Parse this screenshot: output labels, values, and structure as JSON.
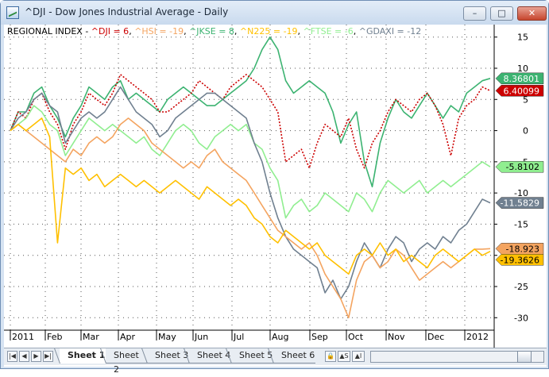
{
  "window": {
    "title": "^DJI - Dow Jones Industrial Average - Daily",
    "minimize_glyph": "–",
    "maximize_glyph": "□",
    "close_glyph": "✕",
    "icon": "chart-icon"
  },
  "legend": {
    "prefix": "REGIONAL INDEX - ",
    "items": [
      {
        "text": "^DJI = 6",
        "color": "#cc0000"
      },
      {
        "text": "^HSI = -19",
        "color": "#f4a460"
      },
      {
        "text": "^JKSE = 8",
        "color": "#3cb371"
      },
      {
        "text": "^N225 = -19",
        "color": "#ffc000"
      },
      {
        "text": "^FTSE = -6",
        "color": "#90ee90"
      },
      {
        "text": "^GDAXI = -12",
        "color": "#708090"
      }
    ],
    "separator": ", "
  },
  "chart_data": {
    "type": "line",
    "title": "REGIONAL INDEX",
    "x_labels": [
      "2011",
      "Feb",
      "Mar",
      "Apr",
      "May",
      "Jun",
      "Jul",
      "Aug",
      "Sep",
      "Oct",
      "Nov",
      "Dec",
      "2012"
    ],
    "ylim": [
      -32,
      17
    ],
    "y_ticks": [
      15,
      10,
      5,
      0,
      -5,
      -10,
      -15,
      -20,
      -25,
      -30
    ],
    "grid": true,
    "legend_position": "top-left",
    "series": [
      {
        "name": "^JKSE",
        "color": "#3cb371",
        "last_label": "8.36801",
        "values": [
          0,
          3,
          3,
          6,
          7,
          4,
          2,
          -1,
          2,
          4,
          7,
          6,
          5,
          7,
          8,
          5,
          6,
          5,
          4,
          3,
          5,
          6,
          7,
          6,
          5,
          4,
          4,
          5,
          6,
          7,
          8,
          10,
          13,
          15,
          13,
          8,
          6,
          7,
          8,
          7,
          6,
          3,
          -2,
          1,
          3,
          -5,
          -9,
          -2,
          2,
          5,
          3,
          2,
          4,
          6,
          4,
          2,
          4,
          3,
          6,
          7,
          8,
          8.36801
        ]
      },
      {
        "name": "^DJI",
        "color": "#cc0000",
        "last_label": "6.40099",
        "values": [
          0,
          3,
          2,
          5,
          6,
          3,
          1,
          -3,
          1,
          3,
          6,
          5,
          4,
          6,
          9,
          8,
          7,
          6,
          5,
          3,
          3,
          4,
          5,
          6,
          8,
          7,
          6,
          5,
          7,
          8,
          9,
          8,
          7,
          5,
          3,
          -5,
          -4,
          -3,
          -6,
          -2,
          1,
          0,
          -1,
          2,
          -3,
          -6,
          -2,
          0,
          3,
          5,
          4,
          3,
          5,
          6,
          4,
          1,
          -4,
          2,
          4,
          5,
          7,
          6.40099
        ]
      },
      {
        "name": "^FTSE",
        "color": "#90ee90",
        "last_label": "-5.8102",
        "values": [
          0,
          1,
          2,
          4,
          3,
          1,
          0,
          -4,
          -2,
          0,
          2,
          1,
          0,
          1,
          0,
          -1,
          -2,
          -1,
          -3,
          -4,
          -2,
          0,
          1,
          0,
          -2,
          -3,
          -1,
          0,
          1,
          0,
          1,
          -2,
          -3,
          -6,
          -8,
          -14,
          -12,
          -11,
          -13,
          -12,
          -10,
          -11,
          -12,
          -13,
          -10,
          -11,
          -13,
          -10,
          -8,
          -9,
          -10,
          -9,
          -8,
          -10,
          -9,
          -8,
          -9,
          -8,
          -7,
          -6,
          -5,
          -5.8102
        ]
      },
      {
        "name": "^GDAXI",
        "color": "#708090",
        "last_label": "-11.5829",
        "values": [
          0,
          2,
          3,
          5,
          6,
          4,
          3,
          -2,
          0,
          2,
          3,
          2,
          3,
          5,
          7,
          5,
          3,
          2,
          1,
          -1,
          0,
          2,
          3,
          4,
          5,
          6,
          6,
          5,
          4,
          3,
          2,
          -2,
          -5,
          -10,
          -14,
          -17,
          -19,
          -20,
          -21,
          -22,
          -26,
          -24,
          -27,
          -25,
          -21,
          -18,
          -20,
          -22,
          -19,
          -17,
          -18,
          -21,
          -19,
          -18,
          -19,
          -17,
          -18,
          -16,
          -15,
          -13,
          -11,
          -11.5829
        ]
      },
      {
        "name": "^HSI",
        "color": "#f4a460",
        "last_label": "-18.923",
        "values": [
          0,
          1,
          0,
          -1,
          -2,
          -3,
          -4,
          -5,
          -3,
          -4,
          -2,
          -1,
          -2,
          -1,
          1,
          2,
          1,
          0,
          -2,
          -3,
          -4,
          -5,
          -6,
          -5,
          -6,
          -4,
          -3,
          -5,
          -6,
          -7,
          -8,
          -10,
          -12,
          -14,
          -16,
          -17,
          -18,
          -19,
          -18,
          -20,
          -23,
          -25,
          -27,
          -30,
          -24,
          -21,
          -20,
          -22,
          -21,
          -19,
          -20,
          -22,
          -24,
          -23,
          -22,
          -21,
          -22,
          -21,
          -20,
          -19,
          -19,
          -18.923
        ]
      },
      {
        "name": "^N225",
        "color": "#ffc000",
        "last_label": "-19.3626",
        "values": [
          0,
          1,
          0,
          1,
          2,
          -1,
          -18,
          -6,
          -7,
          -6,
          -8,
          -7,
          -9,
          -8,
          -7,
          -8,
          -9,
          -8,
          -9,
          -10,
          -9,
          -8,
          -9,
          -10,
          -11,
          -9,
          -10,
          -11,
          -12,
          -11,
          -12,
          -14,
          -15,
          -17,
          -18,
          -16,
          -17,
          -18,
          -19,
          -18,
          -20,
          -21,
          -22,
          -23,
          -20,
          -19,
          -20,
          -18,
          -20,
          -19,
          -21,
          -20,
          -21,
          -22,
          -20,
          -19,
          -20,
          -21,
          -20,
          -19,
          -20,
          -19.3626
        ]
      }
    ]
  },
  "sheets": {
    "tabs": [
      "Sheet 1",
      "Sheet 2",
      "Sheet 3",
      "Sheet 4",
      "Sheet 5",
      "Sheet 6"
    ],
    "active": "Sheet 1",
    "nav": [
      "|◀",
      "◀",
      "▶",
      "▶|"
    ],
    "lock_glyph": "🔒",
    "ctrl1": "▲S",
    "ctrl2": "▲I"
  }
}
